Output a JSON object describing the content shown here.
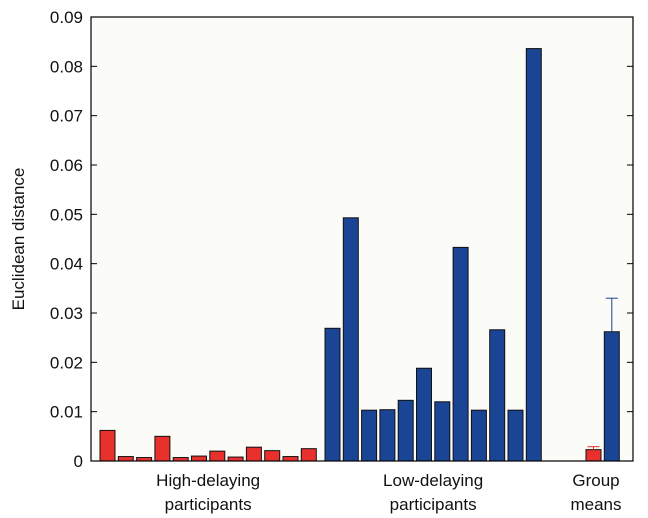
{
  "chart_data": {
    "type": "bar",
    "title": "",
    "xlabel": "",
    "ylabel": "Euclidean distance",
    "ylim": [
      0,
      0.09
    ],
    "yticks": [
      "0",
      "0.01",
      "0.02",
      "0.03",
      "0.04",
      "0.05",
      "0.06",
      "0.07",
      "0.08",
      "0.09"
    ],
    "grid": false,
    "groups": [
      {
        "label_line1": "High-delaying",
        "label_line2": "participants"
      },
      {
        "label_line1": "Low-delaying",
        "label_line2": "participants"
      },
      {
        "label_line1": "Group",
        "label_line2": "means"
      }
    ],
    "series": [
      {
        "group": 0,
        "color": "#e8312d",
        "values": [
          0.0062,
          0.0009,
          0.0007,
          0.005,
          0.0007,
          0.001,
          0.002,
          0.0008,
          0.0028,
          0.0021,
          0.0009,
          0.0025
        ]
      },
      {
        "group": 1,
        "color": "#1a4494",
        "values": [
          0.0269,
          0.0493,
          0.0103,
          0.0104,
          0.0123,
          0.0188,
          0.012,
          0.0433,
          0.0103,
          0.0266,
          0.0103,
          0.0836
        ]
      },
      {
        "group": 2,
        "color": "#e8312d",
        "values": [
          0.0023
        ],
        "error": [
          0.0006
        ]
      },
      {
        "group": 2,
        "color": "#1a4494",
        "values": [
          0.0262
        ],
        "error": [
          0.0068
        ]
      }
    ],
    "colors": {
      "high": "#e8312d",
      "low": "#1a4494",
      "plot_bg": "#fbfbf8",
      "frame": "#000000"
    }
  }
}
